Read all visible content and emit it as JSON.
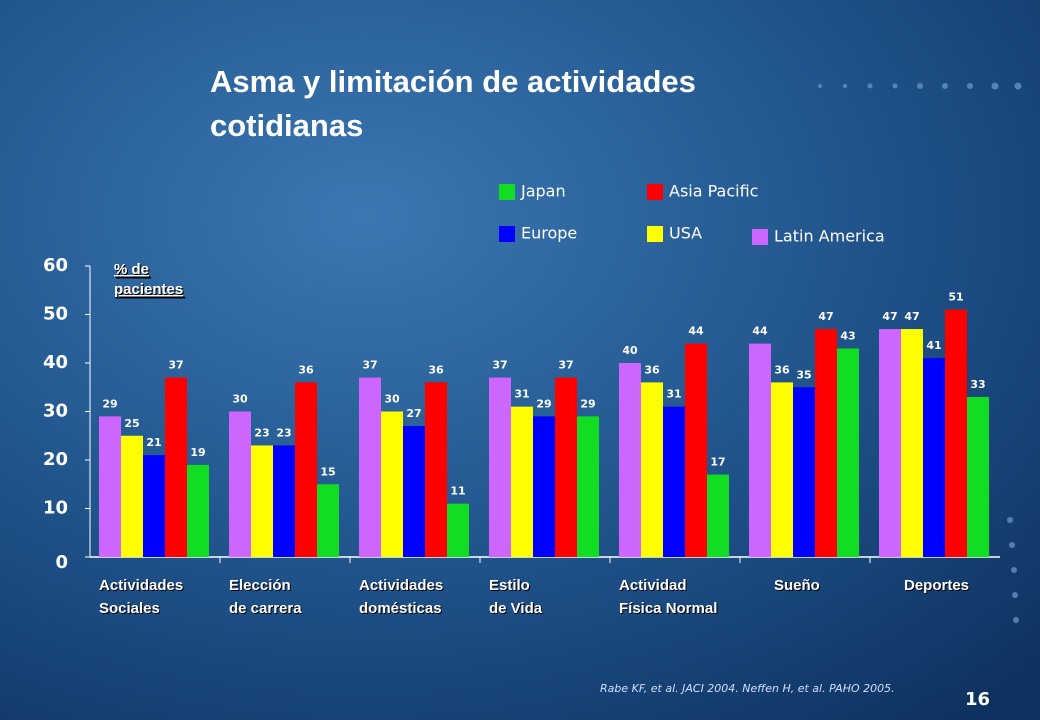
{
  "chart_data": {
    "type": "bar",
    "title": [
      "Asma y limitación de actividades",
      "cotidianas"
    ],
    "y_label": [
      "% de",
      "pacientes"
    ],
    "categories": [
      [
        "Actividades",
        "Sociales"
      ],
      [
        "Elección",
        "de carrera"
      ],
      [
        "Actividades",
        "domésticas"
      ],
      [
        "Estilo",
        "de Vida"
      ],
      [
        "Actividad",
        "Física Normal"
      ],
      [
        "Sueño"
      ],
      [
        "Deportes"
      ]
    ],
    "series": [
      {
        "name": "Latin America",
        "color": "#cc66ff",
        "values": [
          29,
          30,
          37,
          37,
          40,
          44,
          47
        ]
      },
      {
        "name": "USA",
        "color": "#ffff00",
        "values": [
          25,
          23,
          30,
          31,
          36,
          36,
          47
        ]
      },
      {
        "name": "Europe",
        "color": "#0000ff",
        "values": [
          21,
          23,
          27,
          29,
          31,
          35,
          41
        ]
      },
      {
        "name": "Asia Pacific",
        "color": "#ff0000",
        "values": [
          37,
          36,
          36,
          37,
          44,
          47,
          51
        ]
      },
      {
        "name": "Japan",
        "color": "#11dd22",
        "values": [
          19,
          15,
          11,
          29,
          17,
          43,
          33
        ]
      }
    ],
    "ylim": [
      0,
      60
    ],
    "yticks": [
      0,
      10,
      20,
      30,
      40,
      50,
      60
    ],
    "footnote": "Rabe KF, et al. JACI 2004. Neffen H, et al. PAHO 2005.",
    "page_number": "16"
  }
}
